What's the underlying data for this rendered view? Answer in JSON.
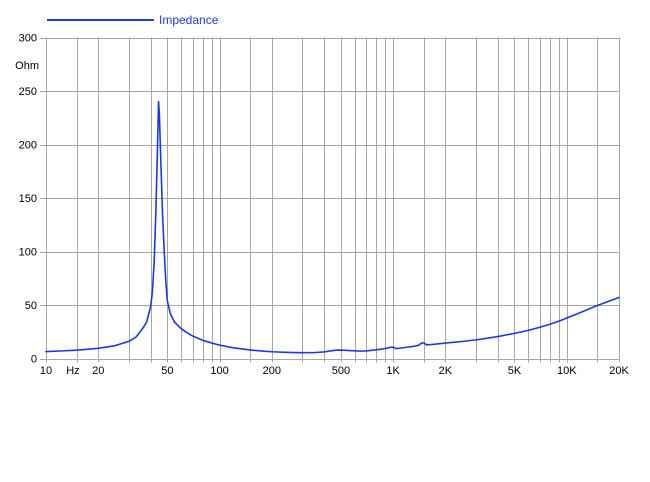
{
  "legend": {
    "label": "Impedance"
  },
  "colors": {
    "curve": "#1a3be4",
    "grid": "#a6a6a6",
    "text": "#000000",
    "background": "#ffffff"
  },
  "axes": {
    "y_unit_label": "Ohm",
    "x_unit_label": "Hz"
  },
  "chart_data": {
    "type": "line",
    "title": "",
    "xlabel": "Hz",
    "ylabel": "Ohm",
    "x_scale": "log",
    "x_range": [
      10,
      20000
    ],
    "ylim": [
      0,
      300
    ],
    "grid": true,
    "legend_position": "top-left",
    "y_ticks": [
      0,
      50,
      100,
      150,
      200,
      250,
      300
    ],
    "x_tick_labels": [
      {
        "label": "10",
        "f": 10
      },
      {
        "label": "Hz",
        "f": 14.3
      },
      {
        "label": "20",
        "f": 20
      },
      {
        "label": "50",
        "f": 50
      },
      {
        "label": "100",
        "f": 100
      },
      {
        "label": "200",
        "f": 200
      },
      {
        "label": "500",
        "f": 500
      },
      {
        "label": "1K",
        "f": 1000
      },
      {
        "label": "2K",
        "f": 2000
      },
      {
        "label": "5K",
        "f": 5000
      },
      {
        "label": "10K",
        "f": 10000
      },
      {
        "label": "20K",
        "f": 20000
      }
    ],
    "grid_freqs": [
      10,
      15,
      20,
      30,
      40,
      50,
      60,
      70,
      80,
      90,
      100,
      150,
      200,
      300,
      400,
      500,
      600,
      700,
      800,
      900,
      1000,
      1500,
      2000,
      3000,
      4000,
      5000,
      6000,
      7000,
      8000,
      9000,
      10000,
      15000,
      20000
    ],
    "series": [
      {
        "name": "Impedance",
        "color": "#1a3be4",
        "points": [
          [
            10,
            6.5
          ],
          [
            12,
            7
          ],
          [
            15,
            7.8
          ],
          [
            20,
            9.5
          ],
          [
            25,
            12
          ],
          [
            30,
            16
          ],
          [
            33,
            20
          ],
          [
            36,
            28
          ],
          [
            38,
            34
          ],
          [
            40,
            48
          ],
          [
            41,
            62
          ],
          [
            42,
            90
          ],
          [
            43,
            140
          ],
          [
            44,
            205
          ],
          [
            44.5,
            240
          ],
          [
            45,
            228
          ],
          [
            46,
            178
          ],
          [
            47,
            132
          ],
          [
            48,
            100
          ],
          [
            49,
            72
          ],
          [
            50,
            54
          ],
          [
            52,
            42
          ],
          [
            55,
            34
          ],
          [
            60,
            28
          ],
          [
            65,
            24
          ],
          [
            70,
            21
          ],
          [
            80,
            17
          ],
          [
            90,
            14.5
          ],
          [
            100,
            12.5
          ],
          [
            120,
            10
          ],
          [
            150,
            8
          ],
          [
            180,
            6.8
          ],
          [
            200,
            6.3
          ],
          [
            250,
            5.7
          ],
          [
            300,
            5.4
          ],
          [
            350,
            5.5
          ],
          [
            400,
            6.2
          ],
          [
            450,
            7.4
          ],
          [
            480,
            7.9
          ],
          [
            520,
            7.8
          ],
          [
            560,
            7.4
          ],
          [
            600,
            7.2
          ],
          [
            650,
            6.9
          ],
          [
            700,
            7.1
          ],
          [
            800,
            8.1
          ],
          [
            900,
            9.3
          ],
          [
            950,
            10.3
          ],
          [
            1000,
            10.6
          ],
          [
            1040,
            9.3
          ],
          [
            1100,
            9.7
          ],
          [
            1200,
            10.5
          ],
          [
            1300,
            11.3
          ],
          [
            1400,
            12.3
          ],
          [
            1450,
            14.3
          ],
          [
            1500,
            14.6
          ],
          [
            1560,
            12.7
          ],
          [
            1700,
            13.2
          ],
          [
            1850,
            13.8
          ],
          [
            2000,
            14.4
          ],
          [
            2500,
            15.9
          ],
          [
            3000,
            17.4
          ],
          [
            3500,
            19
          ],
          [
            4000,
            20.5
          ],
          [
            5000,
            23.5
          ],
          [
            6000,
            26.3
          ],
          [
            7000,
            29.2
          ],
          [
            8000,
            32
          ],
          [
            9000,
            34.8
          ],
          [
            10000,
            37.8
          ],
          [
            12000,
            43
          ],
          [
            15000,
            49.5
          ],
          [
            17000,
            52.8
          ],
          [
            20000,
            57
          ]
        ]
      }
    ]
  }
}
